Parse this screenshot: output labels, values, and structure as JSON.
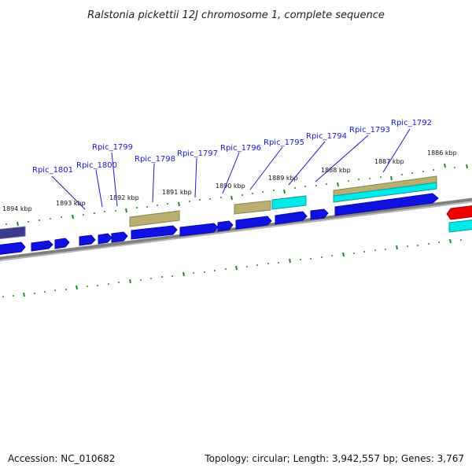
{
  "title": "Ralstonia pickettii 12J chromosome 1, complete sequence",
  "footer": {
    "accession": "Accession: NC_010682",
    "topology": "Topology: circular; Length: 3,942,557 bp; Genes: 3,767"
  },
  "colors": {
    "gene_forward": "#1010e0",
    "gene_reverse": "#1a1aa0",
    "backbone": "#808080",
    "tick": "#2a8a2a",
    "label": "#1a1acc",
    "feature_olive": "#b8b070",
    "feature_cyan": "#00e0e0",
    "feature_navy": "#3a3a8a",
    "feature_red": "#ee0000"
  },
  "kbp_labels": [
    "1894 kbp",
    "1893 kbp",
    "1892 kbp",
    "1891 kbp",
    "1890 kbp",
    "1889 kbp",
    "1888 kbp",
    "1887 kbp",
    "1886 kbp"
  ],
  "gene_labels": [
    "Rpic_1801",
    "Rpic_1800",
    "Rpic_1799",
    "Rpic_1798",
    "Rpic_1797",
    "Rpic_1796",
    "Rpic_1795",
    "Rpic_1794",
    "Rpic_1793",
    "Rpic_1792"
  ]
}
